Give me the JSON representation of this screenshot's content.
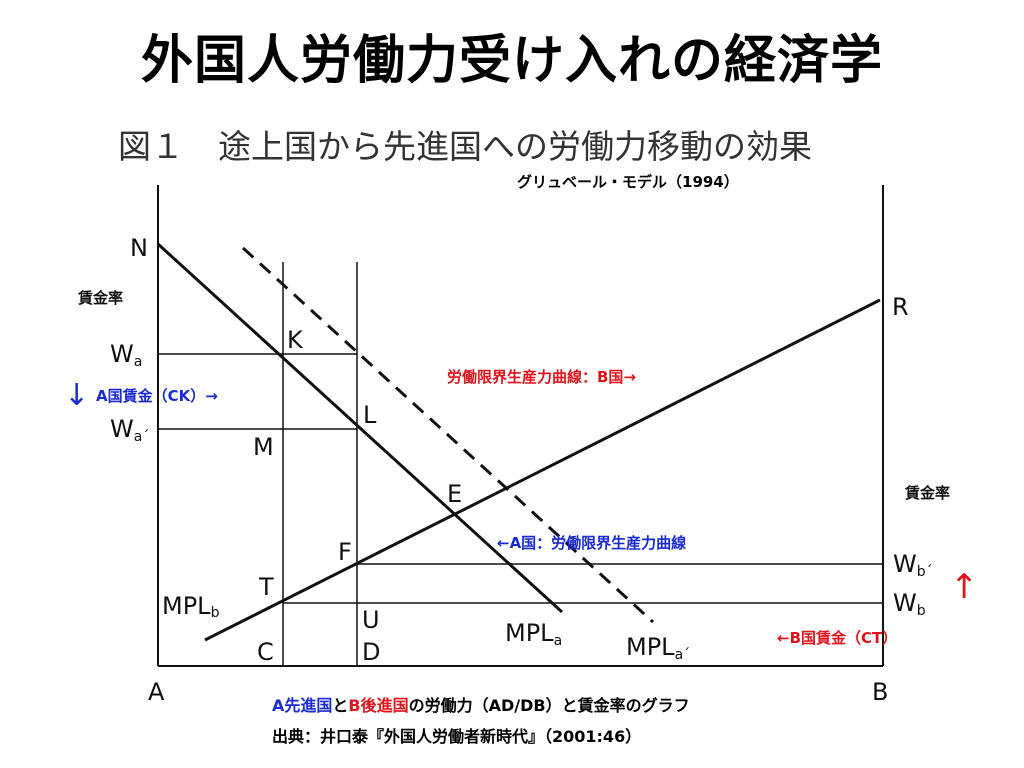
{
  "slide": {
    "title": "外国人労働力受け入れの経済学",
    "figure_number": "図１",
    "figure_title": "途上国から先進国への労働力移動の効果",
    "model_label": "グリュベール・モデル（1994）"
  },
  "axes": {
    "left_axis_label": "賃金率",
    "right_axis_label": "賃金率",
    "origin_a": "A",
    "origin_b": "B"
  },
  "points": {
    "N": "N",
    "K": "K",
    "L": "L",
    "M": "M",
    "E": "E",
    "F": "F",
    "T": "T",
    "U": "U",
    "C": "C",
    "D": "D",
    "R": "R"
  },
  "wages": {
    "wa": {
      "main": "W",
      "sub": "a"
    },
    "wa2": {
      "main": "W",
      "sub": "a´"
    },
    "wb": {
      "main": "W",
      "sub": "b"
    },
    "wb2": {
      "main": "W",
      "sub": "b´"
    }
  },
  "curves": {
    "mpl_b": {
      "main": "MPL",
      "sub": "b"
    },
    "mpl_a": {
      "main": "MPL",
      "sub": "a"
    },
    "mpl_a2": {
      "main": "MPL",
      "sub": "a´"
    }
  },
  "annotations": {
    "a_wage": "A国賃金（CK）→",
    "b_mpl_curve": "労働限界生産力曲線：B国→",
    "a_mpl_curve": "←A国：労働限界生産力曲線",
    "b_wage": "←B国賃金（CT）",
    "down_arrow": "↓",
    "up_arrow": "↑"
  },
  "colors": {
    "blue": "#1a2bd6",
    "red": "#e0141c",
    "line": "#111111"
  },
  "footer": {
    "line1_a": "A先進国",
    "line1_and": "と",
    "line1_b": "B後進国",
    "line1_rest": "の労働力（AD/DB）と賃金率のグラフ",
    "source": "出典：井口泰『外国人労働者新時代』（2001:46）"
  }
}
